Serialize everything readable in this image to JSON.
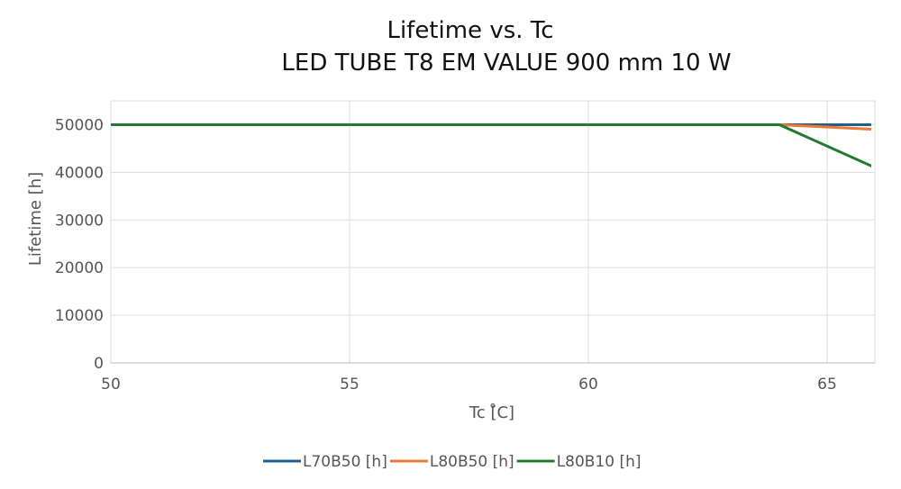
{
  "chart_data": {
    "type": "line",
    "title": "Lifetime vs. Tc",
    "subtitle": "LED TUBE T8 EM VALUE 900 mm 10 W",
    "xlabel": "Tc [̊C]",
    "ylabel": "Lifetime [h]",
    "xlim": [
      50,
      66
    ],
    "ylim": [
      0,
      55000
    ],
    "xticks": [
      50,
      55,
      60,
      65
    ],
    "yticks": [
      0,
      10000,
      20000,
      30000,
      40000,
      50000
    ],
    "grid": true,
    "legend": "bottom",
    "series": [
      {
        "name": "L70B50 [h]",
        "color": "#1f5f8b",
        "x": [
          50,
          64,
          66
        ],
        "y": [
          50000,
          50000,
          50000
        ]
      },
      {
        "name": "L80B50 [h]",
        "color": "#ed7838",
        "x": [
          50,
          64,
          66
        ],
        "y": [
          50000,
          50000,
          49000
        ]
      },
      {
        "name": "L80B10 [h]",
        "color": "#237a2f",
        "x": [
          50,
          64,
          66
        ],
        "y": [
          50000,
          50000,
          41000
        ]
      }
    ]
  }
}
